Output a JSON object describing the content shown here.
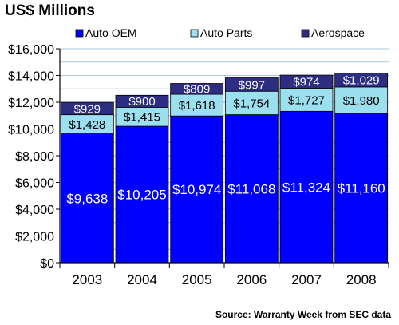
{
  "chart_data": {
    "type": "bar",
    "stacked": true,
    "title": "US$ Millions",
    "categories": [
      "2003",
      "2004",
      "2005",
      "2006",
      "2007",
      "2008"
    ],
    "series": [
      {
        "name": "Auto OEM",
        "color": "#0000ff",
        "label_color": "#ffffff",
        "values": [
          9638,
          10205,
          10974,
          11068,
          11324,
          11160
        ],
        "labels": [
          "$9,638",
          "$10,205",
          "$10,974",
          "$11,068",
          "$11,324",
          "$11,160"
        ]
      },
      {
        "name": "Auto Parts",
        "color": "#9ce0f0",
        "label_color": "#000000",
        "values": [
          1428,
          1415,
          1618,
          1754,
          1727,
          1980
        ],
        "labels": [
          "$1,428",
          "$1,415",
          "$1,618",
          "$1,754",
          "$1,727",
          "$1,980"
        ]
      },
      {
        "name": "Aerospace",
        "color": "#2d2d82",
        "label_color": "#ffffff",
        "values": [
          929,
          900,
          809,
          997,
          974,
          1029
        ],
        "labels": [
          "$929",
          "$900",
          "$809",
          "$997",
          "$974",
          "$1,029"
        ]
      }
    ],
    "ylim": [
      0,
      16000
    ],
    "yticks": [
      0,
      2000,
      4000,
      6000,
      8000,
      10000,
      12000,
      14000,
      16000
    ],
    "ytick_labels": [
      "$0",
      "$2,000",
      "$4,000",
      "$6,000",
      "$8,000",
      "$10,000",
      "$12,000",
      "$14,000",
      "$16,000"
    ],
    "grid": true,
    "legend_position": "top",
    "source": "Source: Warranty Week from SEC data"
  }
}
